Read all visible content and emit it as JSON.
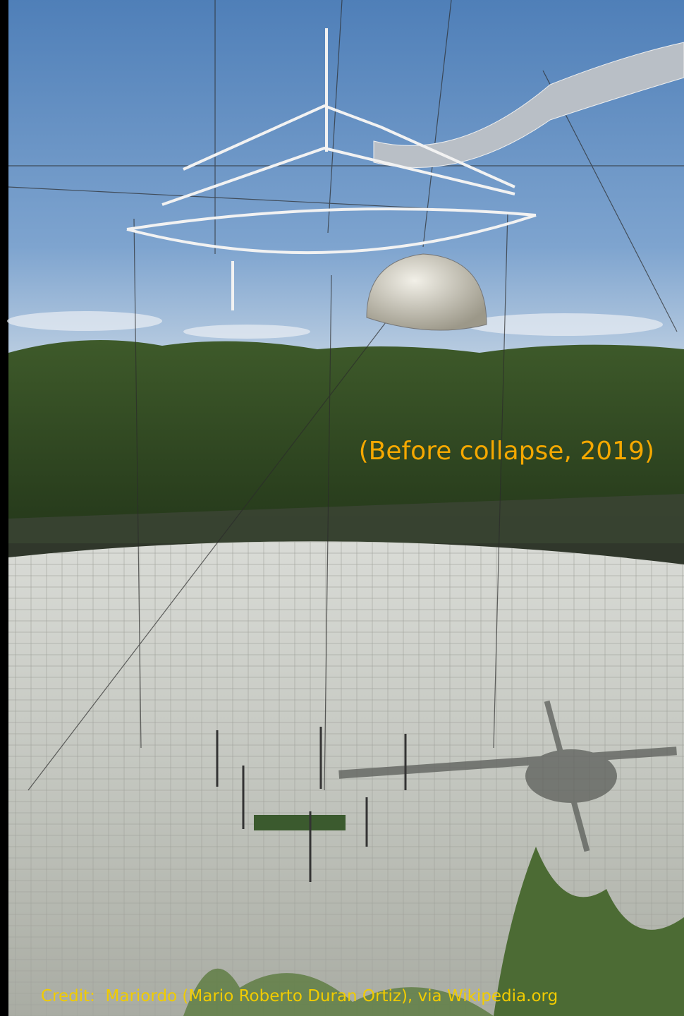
{
  "caption": "(Before collapse, 2019)",
  "credit": "Credit:  Mariordo (Mario Roberto Duran Ortiz), via Wikipedia.org"
}
